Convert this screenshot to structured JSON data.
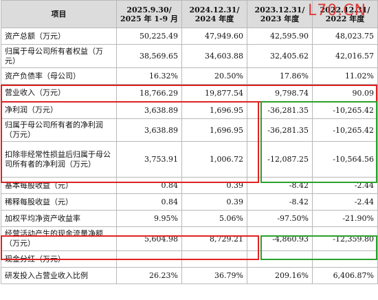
{
  "table": {
    "headers": [
      [
        "项目"
      ],
      [
        "2025.9.30/",
        "2025 年 1-9 月"
      ],
      [
        "2024.12.31/",
        "2024 年度"
      ],
      [
        "2023.12.31/",
        "2023 年度"
      ],
      [
        "2022.12.31/",
        "2022 年度"
      ]
    ],
    "rows": [
      {
        "label": "资产总额（万元）",
        "values": [
          "50,225.49",
          "47,949.60",
          "42,595.90",
          "48,023.75"
        ]
      },
      {
        "label": "归属于母公司所有者权益（万元）",
        "values": [
          "38,569.65",
          "34,603.88",
          "32,405.62",
          "42,016.57"
        ]
      },
      {
        "label": "资产负债率（母公司）",
        "values": [
          "16.32%",
          "20.50%",
          "17.86%",
          "11.02%"
        ]
      },
      {
        "label": "营业收入（万元）",
        "values": [
          "18,766.29",
          "19,877.54",
          "9,798.74",
          "90.09"
        ]
      },
      {
        "label": "净利润（万元）",
        "values": [
          "3,638.89",
          "1,696.95",
          "-36,281.35",
          "-10,265.42"
        ]
      },
      {
        "label": "归属于母公司所有者的净利润（万元）",
        "values": [
          "3,638.89",
          "1,696.95",
          "-36,281.35",
          "-10,265.42"
        ]
      },
      {
        "label": "扣除非经常性损益后归属于母公司所有者的净利润（万元）",
        "values": [
          "3,753.91",
          "1,006.72",
          "-12,087.25",
          "-10,564.56"
        ]
      },
      {
        "label": "基本每股收益（元）",
        "values": [
          "0.84",
          "0.39",
          "-8.42",
          "-2.44"
        ]
      },
      {
        "label": "稀释每股收益（元）",
        "values": [
          "0.84",
          "0.39",
          "-8.42",
          "-2.44"
        ]
      },
      {
        "label": "加权平均净资产收益率",
        "values": [
          "9.95%",
          "5.06%",
          "-97.50%",
          "-21.90%"
        ]
      },
      {
        "label": "经营活动产生的现金流量净额（万元）",
        "values": [
          "5,604.98",
          "8,729.21",
          "-4,860.93",
          "-12,359.80"
        ]
      },
      {
        "label": "现金分红（万元）",
        "values": [
          "-",
          "-",
          "-",
          "-"
        ]
      },
      {
        "label": "研发投入占营业收入比例",
        "values": [
          "26.23%",
          "36.79%",
          "209.16%",
          "6,406.87%"
        ]
      }
    ]
  },
  "watermark": "L70.CN",
  "colors": {
    "highlight_red": "#e02020",
    "highlight_green": "#2aa12a",
    "header_bg": "#dcdcdc"
  }
}
